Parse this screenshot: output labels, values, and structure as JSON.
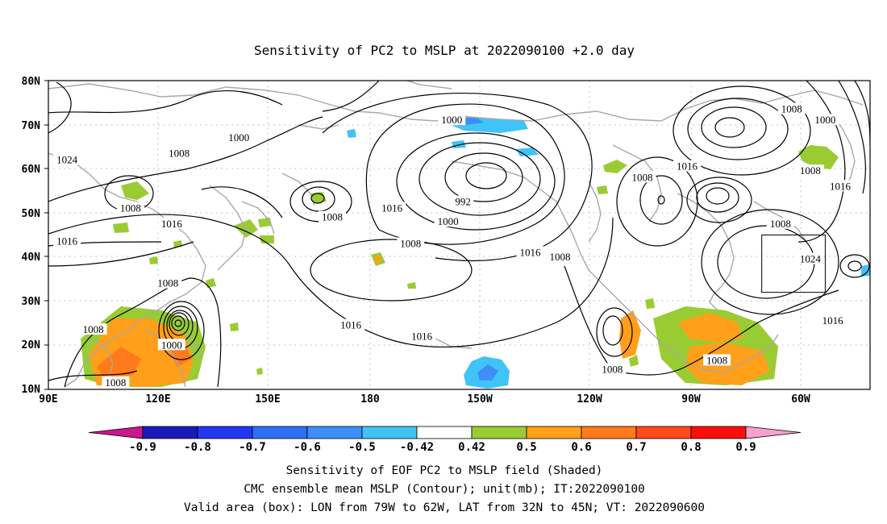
{
  "title": "Sensitivity of PC2 to MSLP at 2022090100 +2.0 day",
  "lat_labels": [
    "80N",
    "70N",
    "60N",
    "50N",
    "40N",
    "30N",
    "20N",
    "10N"
  ],
  "lon_labels": [
    "90E",
    "120E",
    "150E",
    "180",
    "150W",
    "120W",
    "90W",
    "60W"
  ],
  "contour_labels": [
    {
      "text": "1000",
      "lon": -162,
      "lat": 71
    },
    {
      "text": "1008",
      "lon": -71,
      "lat": 73.5
    },
    {
      "text": "1000",
      "lon": -62,
      "lat": 71
    },
    {
      "text": "1000",
      "lon": 141,
      "lat": 67
    },
    {
      "text": "1008",
      "lon": 125,
      "lat": 63.5
    },
    {
      "text": "1024",
      "lon": 95,
      "lat": 62
    },
    {
      "text": "1008",
      "lon": -111,
      "lat": 58
    },
    {
      "text": "1016",
      "lon": -99,
      "lat": 60.5
    },
    {
      "text": "1008",
      "lon": -66,
      "lat": 59.5
    },
    {
      "text": "1016",
      "lon": -58,
      "lat": 56
    },
    {
      "text": "1008",
      "lon": 112,
      "lat": 51
    },
    {
      "text": "992",
      "lon": -159,
      "lat": 52.5
    },
    {
      "text": "1008",
      "lon": 166,
      "lat": 49
    },
    {
      "text": "1016",
      "lon": 182,
      "lat": 51
    },
    {
      "text": "1000",
      "lon": -163,
      "lat": 48
    },
    {
      "text": "1016",
      "lon": 123,
      "lat": 47.5
    },
    {
      "text": "1008",
      "lon": -74,
      "lat": 47.5
    },
    {
      "text": "1016",
      "lon": 95,
      "lat": 43.5
    },
    {
      "text": "1008",
      "lon": -173,
      "lat": 43
    },
    {
      "text": "1016",
      "lon": -141,
      "lat": 41
    },
    {
      "text": "1008",
      "lon": -133,
      "lat": 40
    },
    {
      "text": "1024",
      "lon": -66,
      "lat": 39.5
    },
    {
      "text": "1008",
      "lon": 122,
      "lat": 34
    },
    {
      "text": "1016",
      "lon": -60,
      "lat": 25.5
    },
    {
      "text": "1016",
      "lon": 171,
      "lat": 24.5
    },
    {
      "text": "1008",
      "lon": 102,
      "lat": 23.5
    },
    {
      "text": "1016",
      "lon": -170,
      "lat": 22
    },
    {
      "text": "1000",
      "lon": 123,
      "lat": 20
    },
    {
      "text": "1008",
      "lon": -91,
      "lat": 16.5
    },
    {
      "text": "1008",
      "lon": -119,
      "lat": 14.5
    },
    {
      "text": "1008",
      "lon": 108,
      "lat": 11.5
    }
  ],
  "valid_area_box": {
    "lon_min": -79,
    "lon_max": -62,
    "lat_min": 32,
    "lat_max": 45
  },
  "colorbar": {
    "colors": [
      "#c8188c",
      "#1a1ab8",
      "#2238f0",
      "#2f6ef5",
      "#3c8ff7",
      "#40c3f7",
      "#ffffff",
      "#99cc33",
      "#ff9f1a",
      "#ff7a1a",
      "#ff4a1a",
      "#ff0d0d",
      "#f7a1cc"
    ],
    "tick_labels": [
      "-0.9",
      "-0.8",
      "-0.7",
      "-0.6",
      "-0.5",
      "-0.42",
      "0.42",
      "0.5",
      "0.6",
      "0.7",
      "0.8",
      "0.9"
    ]
  },
  "caption_lines": [
    "Sensitivity of EOF PC2 to MSLP field (Shaded)",
    "CMC ensemble mean MSLP (Contour); unit(mb); IT:2022090100",
    "Valid area (box): LON from 79W to 62W, LAT from 32N to 45N; VT: 2022090600"
  ]
}
